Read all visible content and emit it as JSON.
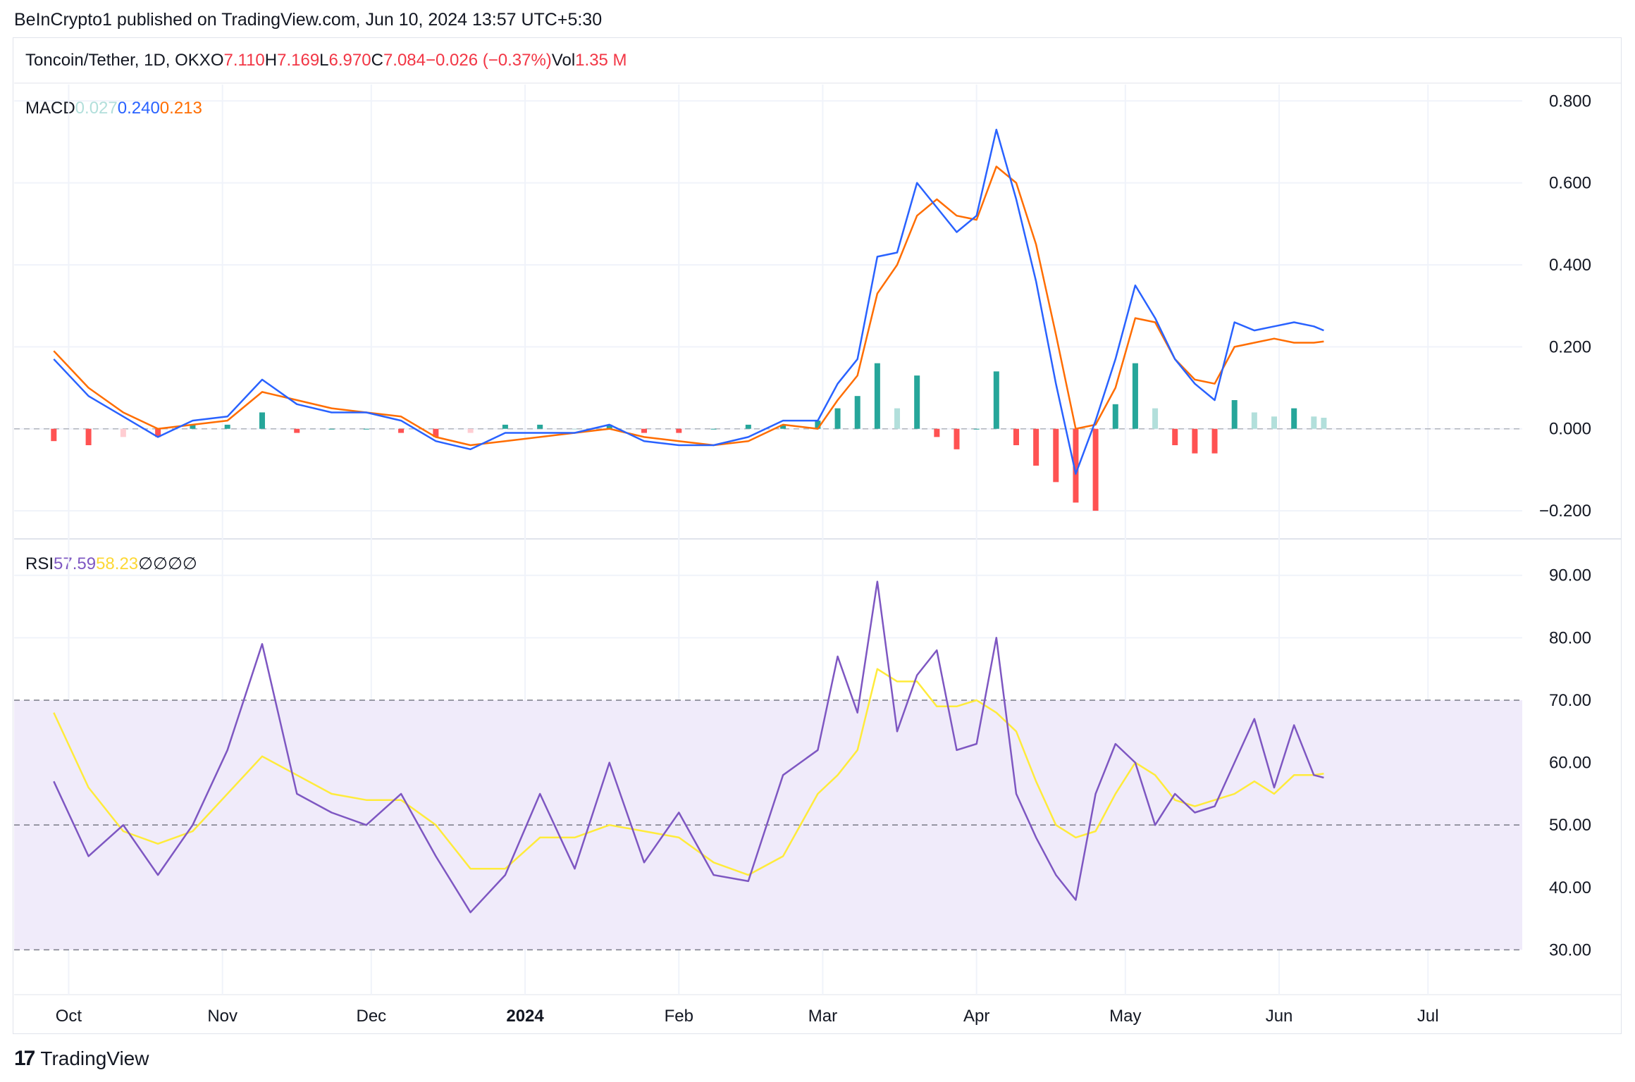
{
  "publisher": "BeInCrypto1 published on TradingView.com, Jun 10, 2024 13:57 UTC+5:30",
  "symbol": {
    "name": "Toncoin/Tether, 1D, OKX",
    "o_label": "O",
    "o_value": "7.110",
    "h_label": "H",
    "h_value": "7.169",
    "l_label": "L",
    "l_value": "6.970",
    "c_label": "C",
    "c_value": "7.084",
    "change": "−0.026 (−0.37%)",
    "vol_label": "Vol",
    "vol_value": "1.35 M"
  },
  "colors": {
    "macd_line": "#2962ff",
    "signal_line": "#ff6d00",
    "hist_pos_strong": "#26a69a",
    "hist_pos_weak": "#b2dfdb",
    "hist_neg_strong": "#ff5252",
    "hist_neg_weak": "#ffcdd2",
    "rsi_line": "#7e57c2",
    "rsi_ma": "#ffeb3b",
    "rsi_band": "#f0ebfa",
    "negative": "#f23645"
  },
  "macd_legend": {
    "title": "MACD",
    "hist": "0.027",
    "macd": "0.240",
    "signal": "0.213"
  },
  "rsi_legend": {
    "title": "RSI",
    "rsi": "57.59",
    "ma": "58.23",
    "na": [
      "∅",
      "∅",
      "∅",
      "∅"
    ]
  },
  "x_axis": {
    "labels": [
      "Oct",
      "Nov",
      "Dec",
      "2024",
      "Feb",
      "Mar",
      "Apr",
      "May",
      "Jun",
      "Jul"
    ]
  },
  "footer": {
    "brand": "TradingView"
  },
  "chart_data": [
    {
      "type": "line",
      "name": "MACD",
      "y_ticks": [
        "0.800",
        "0.600",
        "0.400",
        "0.200",
        "0.000",
        "−0.200"
      ],
      "ylim": [
        -0.26,
        0.84
      ],
      "x": [
        "2023-09-28",
        "2023-10-05",
        "2023-10-12",
        "2023-10-19",
        "2023-10-26",
        "2023-11-02",
        "2023-11-09",
        "2023-11-16",
        "2023-11-23",
        "2023-11-30",
        "2023-12-07",
        "2023-12-14",
        "2023-12-21",
        "2023-12-28",
        "2024-01-04",
        "2024-01-11",
        "2024-01-18",
        "2024-01-25",
        "2024-02-01",
        "2024-02-08",
        "2024-02-15",
        "2024-02-22",
        "2024-02-29",
        "2024-03-04",
        "2024-03-08",
        "2024-03-12",
        "2024-03-16",
        "2024-03-20",
        "2024-03-24",
        "2024-03-28",
        "2024-04-01",
        "2024-04-05",
        "2024-04-09",
        "2024-04-13",
        "2024-04-17",
        "2024-04-21",
        "2024-04-25",
        "2024-04-29",
        "2024-05-03",
        "2024-05-07",
        "2024-05-11",
        "2024-05-15",
        "2024-05-19",
        "2024-05-23",
        "2024-05-27",
        "2024-05-31",
        "2024-06-04",
        "2024-06-08",
        "2024-06-10"
      ],
      "series": [
        {
          "name": "MACD",
          "values": [
            0.17,
            0.08,
            0.03,
            -0.02,
            0.02,
            0.03,
            0.12,
            0.06,
            0.04,
            0.04,
            0.02,
            -0.03,
            -0.05,
            -0.01,
            -0.01,
            -0.01,
            0.01,
            -0.03,
            -0.04,
            -0.04,
            -0.02,
            0.02,
            0.02,
            0.11,
            0.17,
            0.42,
            0.43,
            0.6,
            0.54,
            0.48,
            0.52,
            0.73,
            0.56,
            0.36,
            0.11,
            -0.11,
            0.02,
            0.17,
            0.35,
            0.27,
            0.17,
            0.11,
            0.07,
            0.26,
            0.24,
            0.25,
            0.26,
            0.25,
            0.24
          ]
        },
        {
          "name": "Signal",
          "values": [
            0.19,
            0.1,
            0.04,
            0.0,
            0.01,
            0.02,
            0.09,
            0.07,
            0.05,
            0.04,
            0.03,
            -0.02,
            -0.04,
            -0.03,
            -0.02,
            -0.01,
            0.0,
            -0.02,
            -0.03,
            -0.04,
            -0.03,
            0.01,
            0.0,
            0.07,
            0.13,
            0.33,
            0.4,
            0.52,
            0.56,
            0.52,
            0.51,
            0.64,
            0.6,
            0.45,
            0.23,
            0.0,
            0.01,
            0.1,
            0.27,
            0.26,
            0.17,
            0.12,
            0.11,
            0.2,
            0.21,
            0.22,
            0.21,
            0.21,
            0.213
          ]
        },
        {
          "name": "Histogram",
          "values": [
            -0.03,
            -0.04,
            -0.02,
            -0.02,
            0.01,
            0.01,
            0.04,
            -0.01,
            0.0,
            0.0,
            -0.01,
            -0.02,
            -0.01,
            0.01,
            0.01,
            0.0,
            0.01,
            -0.01,
            -0.01,
            0.0,
            0.01,
            0.01,
            0.02,
            0.05,
            0.08,
            0.16,
            0.05,
            0.13,
            -0.02,
            -0.05,
            0.0,
            0.14,
            -0.04,
            -0.09,
            -0.13,
            -0.18,
            -0.2,
            0.06,
            0.16,
            0.05,
            -0.04,
            -0.06,
            -0.06,
            0.07,
            0.04,
            0.03,
            0.05,
            0.03,
            0.027
          ]
        }
      ]
    },
    {
      "type": "line",
      "name": "RSI",
      "y_ticks": [
        "90.00",
        "80.00",
        "70.00",
        "60.00",
        "50.00",
        "40.00",
        "30.00"
      ],
      "ylim": [
        23.5,
        95.5
      ],
      "bands": [
        70,
        50,
        30
      ],
      "x": [
        "2023-09-28",
        "2023-10-05",
        "2023-10-12",
        "2023-10-19",
        "2023-10-26",
        "2023-11-02",
        "2023-11-09",
        "2023-11-16",
        "2023-11-23",
        "2023-11-30",
        "2023-12-07",
        "2023-12-14",
        "2023-12-21",
        "2023-12-28",
        "2024-01-04",
        "2024-01-11",
        "2024-01-18",
        "2024-01-25",
        "2024-02-01",
        "2024-02-08",
        "2024-02-15",
        "2024-02-22",
        "2024-02-29",
        "2024-03-04",
        "2024-03-08",
        "2024-03-12",
        "2024-03-16",
        "2024-03-20",
        "2024-03-24",
        "2024-03-28",
        "2024-04-01",
        "2024-04-05",
        "2024-04-09",
        "2024-04-13",
        "2024-04-17",
        "2024-04-21",
        "2024-04-25",
        "2024-04-29",
        "2024-05-03",
        "2024-05-07",
        "2024-05-11",
        "2024-05-15",
        "2024-05-19",
        "2024-05-23",
        "2024-05-27",
        "2024-05-31",
        "2024-06-04",
        "2024-06-08",
        "2024-06-10"
      ],
      "series": [
        {
          "name": "RSI",
          "values": [
            57,
            45,
            50,
            42,
            50,
            62,
            79,
            55,
            52,
            50,
            55,
            45,
            36,
            42,
            55,
            43,
            60,
            44,
            52,
            42,
            41,
            58,
            62,
            77,
            68,
            89,
            65,
            74,
            78,
            62,
            63,
            80,
            55,
            48,
            42,
            38,
            55,
            63,
            60,
            50,
            55,
            52,
            53,
            60,
            67,
            56,
            66,
            58,
            57.59
          ]
        },
        {
          "name": "RSI MA",
          "values": [
            68,
            56,
            49,
            47,
            49,
            55,
            61,
            58,
            55,
            54,
            54,
            50,
            43,
            43,
            48,
            48,
            50,
            49,
            48,
            44,
            42,
            45,
            55,
            58,
            62,
            75,
            73,
            73,
            69,
            69,
            70,
            68,
            65,
            57,
            50,
            48,
            49,
            55,
            60,
            58,
            54,
            53,
            54,
            55,
            57,
            55,
            58,
            58,
            58.23
          ]
        }
      ]
    }
  ]
}
